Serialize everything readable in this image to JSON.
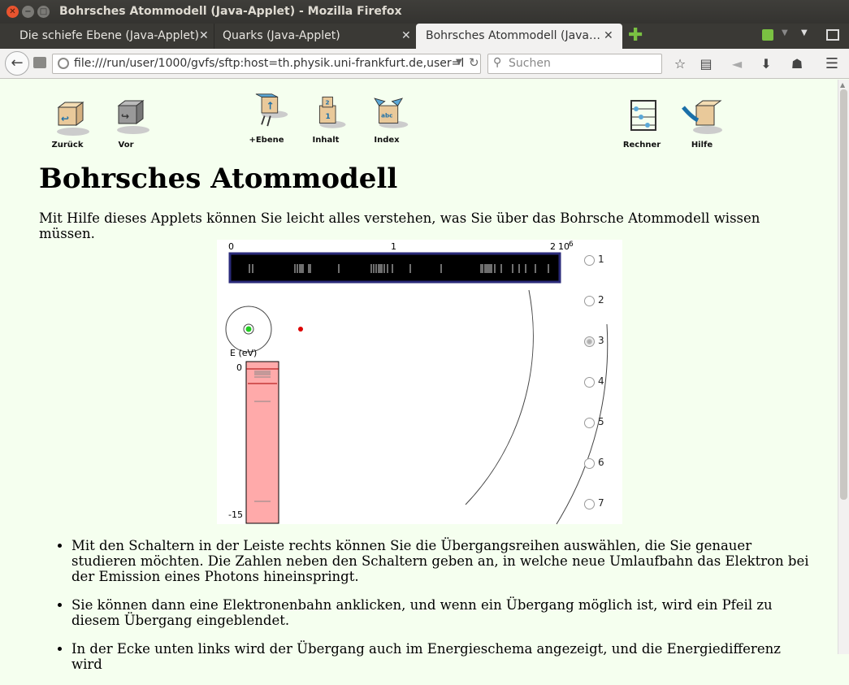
{
  "window": {
    "title": "Bohrsches Atommodell (Java-Applet) - Mozilla Firefox"
  },
  "tabs": [
    {
      "label": "Die schiefe Ebene (Java-Applet)"
    },
    {
      "label": "Quarks (Java-Applet)"
    },
    {
      "label": "Bohrsches Atommodell (Java…"
    }
  ],
  "toolbar": {
    "url": "file:///run/user/1000/gvfs/sftp:host=th.physik.uni-frankfurt.de,user=l",
    "search_placeholder": "Suchen"
  },
  "page_nav": [
    {
      "label": "Zurück"
    },
    {
      "label": "Vor"
    },
    {
      "label": "+Ebene"
    },
    {
      "label": "Inhalt"
    },
    {
      "label": "Index"
    },
    {
      "label": "Rechner"
    },
    {
      "label": "Hilfe"
    }
  ],
  "page": {
    "title": "Bohrsches Atommodell",
    "intro": "Mit Hilfe dieses Applets können Sie leicht alles verstehen, was Sie über das Bohrsche Atommodell wissen müssen.",
    "bullets": [
      "Mit den Schaltern in der Leiste rechts können Sie die Übergangsreihen auswählen, die Sie genauer studieren möchten. Die Zahlen neben den Schaltern geben an, in welche neue Umlaufbahn das Elektron bei der Emission eines Photons hineinspringt.",
      "Sie können dann eine Elektronenbahn anklicken, und wenn ein Übergang möglich ist, wird ein Pfeil zu diesem Übergang eingeblendet.",
      "In der Ecke unten links wird der Übergang auch im Energieschema angezeigt, und die Energiedifferenz wird"
    ]
  },
  "applet": {
    "spectrum_scale": {
      "tick0": "0",
      "tick1": "1",
      "tick2": "2",
      "unit": "10",
      "exponent": "6"
    },
    "energy_axis": {
      "label": "E (eV)",
      "top": "0",
      "bottom": "-15"
    },
    "series_options": [
      "1",
      "2",
      "3",
      "4",
      "5",
      "6",
      "7"
    ],
    "selected_series": "3",
    "colors": {
      "spectrum_bg": "#000000",
      "spectrum_border": "#2a2a7a",
      "energy_bar": "#ffaaaa",
      "nucleus": "#22cc22",
      "electron": "#dd0000"
    }
  }
}
